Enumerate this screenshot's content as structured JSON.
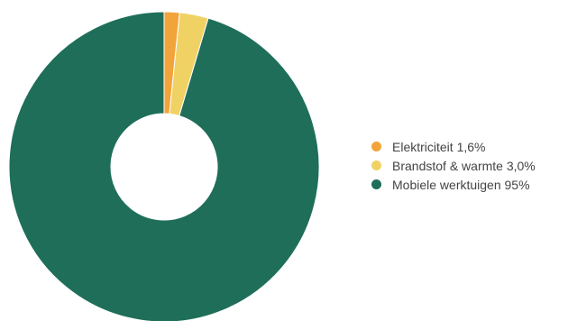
{
  "chart_data": {
    "type": "pie",
    "variant": "donut",
    "series": [
      {
        "name": "Elektriciteit",
        "label": "Elektriciteit 1,6%",
        "value": 1.6,
        "color": "#f2a33a"
      },
      {
        "name": "Brandstof & warmte",
        "label": "Brandstof & warmte 3,0%",
        "value": 3.0,
        "color": "#f0d264"
      },
      {
        "name": "Mobiele werktuigen",
        "label": "Mobiele werktuigen 95%",
        "value": 95.4,
        "color": "#1e6e5a"
      }
    ],
    "legend_position": "right",
    "start_angle": "top",
    "direction": "clockwise"
  }
}
